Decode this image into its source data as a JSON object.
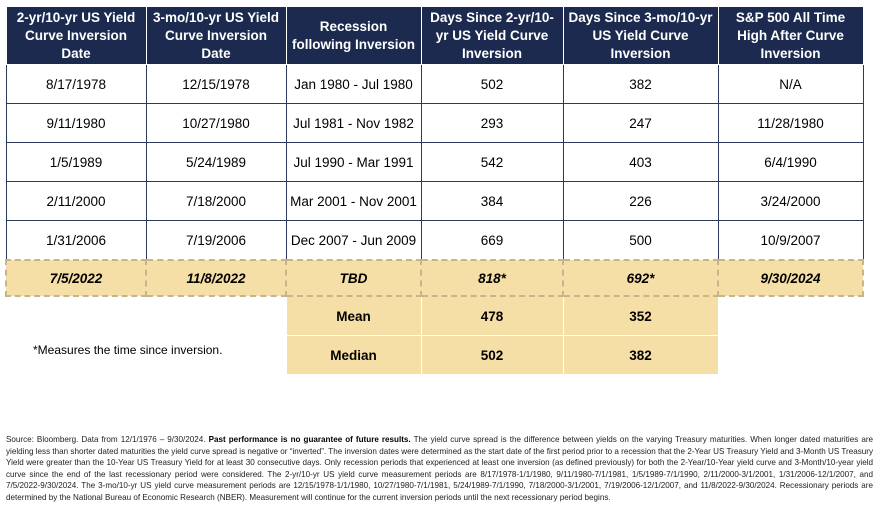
{
  "headers": [
    "2-yr/10-yr US Yield Curve Inversion Date",
    "3-mo/10-yr US Yield Curve Inversion Date",
    "Recession following Inversion",
    "Days Since 2-yr/10-yr US Yield Curve Inversion",
    "Days Since 3-mo/10-yr US Yield Curve Inversion",
    "S&P 500 All Time High After Curve Inversion"
  ],
  "rows": [
    [
      "8/17/1978",
      "12/15/1978",
      "Jan 1980 - Jul 1980",
      "502",
      "382",
      "N/A"
    ],
    [
      "9/11/1980",
      "10/27/1980",
      "Jul 1981 - Nov 1982",
      "293",
      "247",
      "11/28/1980"
    ],
    [
      "1/5/1989",
      "5/24/1989",
      "Jul 1990 - Mar 1991",
      "542",
      "403",
      "6/4/1990"
    ],
    [
      "2/11/2000",
      "7/18/2000",
      "Mar 2001 - Nov 2001",
      "384",
      "226",
      "3/24/2000"
    ],
    [
      "1/31/2006",
      "7/19/2006",
      "Dec 2007 - Jun 2009",
      "669",
      "500",
      "10/9/2007"
    ]
  ],
  "current": [
    "7/5/2022",
    "11/8/2022",
    "TBD",
    "818*",
    "692*",
    "9/30/2024"
  ],
  "stats": [
    {
      "label": "Mean",
      "v1": "478",
      "v2": "352"
    },
    {
      "label": "Median",
      "v1": "502",
      "v2": "382"
    }
  ],
  "footnote": "*Measures the time since inversion.",
  "source": {
    "prefix": "Source: Bloomberg. Data from 12/1/1976 – 9/30/2024.",
    "bold": "Past performance is no guarantee of future results.",
    "body": "The yield curve spread is the difference between yields on the varying Treasury maturities. When longer dated maturities are yielding less than shorter dated maturities the yield curve spread is negative or “inverted”. The inversion dates were determined as the start date of the first period prior to a recession that the 2-Year US Treasury Yield and 3-Month US Treasury Yield were greater than the 10-Year US Treasury Yield for at least 30 consecutive days. Only recession periods that experienced at least one inversion (as defined previously) for both the 2-Year/10-Year yield curve and 3-Month/10-year yield curve since the end of the last recessionary period were considered. The 2-yr/10-yr US yield curve measurement periods are 8/17/1978-1/1/1980, 9/11/1980-7/1/1981, 1/5/1989-7/1/1990, 2/11/2000-3/1/2001, 1/31/2006-12/1/2007, and 7/5/2022-9/30/2024. The 3-mo/10-yr US yield curve measurement periods are 12/15/1978-1/1/1980, 10/27/1980-7/1/1981, 5/24/1989-7/1/1990, 7/18/2000-3/1/2001, 7/19/2006-12/1/2007, and 11/8/2022-9/30/2024. Recessionary periods are determined by the National Bureau of Economic Research (NBER). Measurement will continue for the current inversion periods until the next recessionary period begins."
  }
}
